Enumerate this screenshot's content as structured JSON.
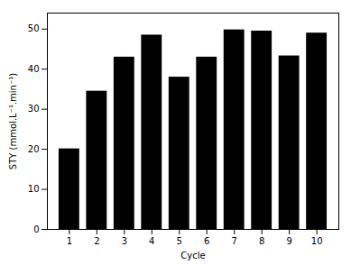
{
  "chart_data": {
    "type": "bar",
    "x": [
      1,
      2,
      3,
      4,
      5,
      6,
      7,
      8,
      9,
      10
    ],
    "values": [
      20.1,
      34.5,
      43.0,
      48.5,
      38.0,
      43.0,
      49.8,
      49.5,
      43.3,
      49.0
    ],
    "color": "#000000",
    "xlabel": "Cycle",
    "ylabel": "STY (mmol.L⁻¹.min⁻¹)",
    "xlim": [
      0.2,
      10.8
    ],
    "xticks": [
      1,
      2,
      3,
      4,
      5,
      6,
      7,
      8,
      9,
      10
    ],
    "ylim": [
      0,
      54
    ],
    "yticks": [
      0,
      10,
      20,
      30,
      40,
      50
    ],
    "grid": false
  }
}
